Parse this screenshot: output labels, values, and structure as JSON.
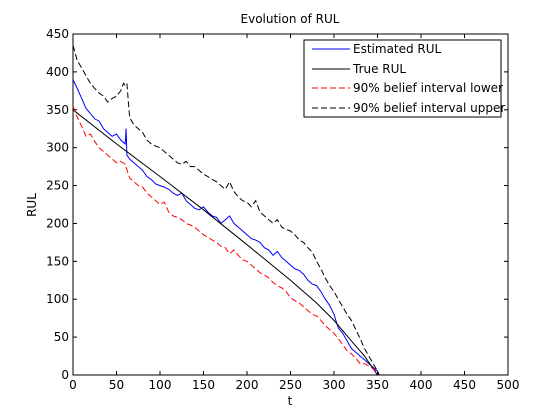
{
  "colors": {
    "estimated": "#0000ff",
    "true": "#000000",
    "lower": "#ff0000",
    "upper": "#000000"
  },
  "chart_data": {
    "type": "line",
    "title": "Evolution of RUL",
    "xlabel": "t",
    "ylabel": "RUL",
    "xlim": [
      0,
      500
    ],
    "ylim": [
      0,
      450
    ],
    "xticks": [
      0,
      50,
      100,
      150,
      200,
      250,
      300,
      350,
      400,
      450,
      500
    ],
    "yticks": [
      0,
      50,
      100,
      150,
      200,
      250,
      300,
      350,
      400,
      450
    ],
    "grid": false,
    "legend_position": "top-right",
    "series": [
      {
        "name": "Estimated RUL",
        "style": "solid",
        "color": "#0000ff",
        "points": [
          [
            0,
            390
          ],
          [
            5,
            378
          ],
          [
            10,
            365
          ],
          [
            15,
            352
          ],
          [
            20,
            345
          ],
          [
            25,
            338
          ],
          [
            30,
            335
          ],
          [
            35,
            325
          ],
          [
            40,
            320
          ],
          [
            45,
            315
          ],
          [
            50,
            318
          ],
          [
            55,
            310
          ],
          [
            60,
            305
          ],
          [
            61,
            325
          ],
          [
            62,
            290
          ],
          [
            65,
            285
          ],
          [
            70,
            280
          ],
          [
            75,
            275
          ],
          [
            80,
            270
          ],
          [
            85,
            262
          ],
          [
            90,
            258
          ],
          [
            95,
            252
          ],
          [
            100,
            250
          ],
          [
            105,
            248
          ],
          [
            110,
            245
          ],
          [
            115,
            240
          ],
          [
            120,
            237
          ],
          [
            125,
            240
          ],
          [
            130,
            230
          ],
          [
            135,
            225
          ],
          [
            140,
            220
          ],
          [
            145,
            218
          ],
          [
            150,
            222
          ],
          [
            155,
            215
          ],
          [
            160,
            210
          ],
          [
            165,
            208
          ],
          [
            170,
            200
          ],
          [
            175,
            205
          ],
          [
            180,
            210
          ],
          [
            185,
            200
          ],
          [
            190,
            195
          ],
          [
            195,
            190
          ],
          [
            200,
            185
          ],
          [
            205,
            180
          ],
          [
            210,
            178
          ],
          [
            215,
            175
          ],
          [
            220,
            168
          ],
          [
            225,
            165
          ],
          [
            230,
            158
          ],
          [
            235,
            163
          ],
          [
            240,
            155
          ],
          [
            245,
            150
          ],
          [
            250,
            145
          ],
          [
            255,
            140
          ],
          [
            260,
            138
          ],
          [
            265,
            133
          ],
          [
            270,
            125
          ],
          [
            275,
            120
          ],
          [
            280,
            118
          ],
          [
            285,
            110
          ],
          [
            290,
            100
          ],
          [
            295,
            92
          ],
          [
            300,
            80
          ],
          [
            305,
            62
          ],
          [
            310,
            55
          ],
          [
            315,
            45
          ],
          [
            320,
            35
          ],
          [
            325,
            30
          ],
          [
            330,
            25
          ],
          [
            335,
            20
          ],
          [
            340,
            15
          ],
          [
            345,
            10
          ],
          [
            350,
            5
          ],
          [
            352,
            0
          ]
        ]
      },
      {
        "name": "True RUL",
        "style": "solid",
        "color": "#000000",
        "points": [
          [
            0,
            350
          ],
          [
            50,
            305
          ],
          [
            100,
            262
          ],
          [
            150,
            218
          ],
          [
            200,
            172
          ],
          [
            250,
            125
          ],
          [
            280,
            95
          ],
          [
            300,
            72
          ],
          [
            320,
            45
          ],
          [
            335,
            25
          ],
          [
            350,
            0
          ]
        ]
      },
      {
        "name": "90% belief interval lower",
        "style": "dashed",
        "color": "#ff0000",
        "points": [
          [
            0,
            355
          ],
          [
            5,
            340
          ],
          [
            10,
            328
          ],
          [
            15,
            315
          ],
          [
            20,
            318
          ],
          [
            25,
            308
          ],
          [
            30,
            300
          ],
          [
            35,
            295
          ],
          [
            40,
            290
          ],
          [
            45,
            285
          ],
          [
            50,
            280
          ],
          [
            55,
            282
          ],
          [
            60,
            278
          ],
          [
            65,
            260
          ],
          [
            70,
            255
          ],
          [
            75,
            250
          ],
          [
            80,
            248
          ],
          [
            85,
            240
          ],
          [
            90,
            235
          ],
          [
            95,
            230
          ],
          [
            100,
            225
          ],
          [
            105,
            228
          ],
          [
            110,
            215
          ],
          [
            115,
            210
          ],
          [
            120,
            208
          ],
          [
            125,
            205
          ],
          [
            130,
            200
          ],
          [
            135,
            198
          ],
          [
            140,
            195
          ],
          [
            145,
            190
          ],
          [
            150,
            185
          ],
          [
            155,
            182
          ],
          [
            160,
            178
          ],
          [
            165,
            175
          ],
          [
            170,
            170
          ],
          [
            175,
            168
          ],
          [
            180,
            160
          ],
          [
            185,
            165
          ],
          [
            190,
            158
          ],
          [
            195,
            152
          ],
          [
            200,
            150
          ],
          [
            205,
            145
          ],
          [
            210,
            140
          ],
          [
            215,
            135
          ],
          [
            220,
            132
          ],
          [
            225,
            128
          ],
          [
            230,
            122
          ],
          [
            235,
            118
          ],
          [
            240,
            115
          ],
          [
            245,
            110
          ],
          [
            250,
            102
          ],
          [
            255,
            98
          ],
          [
            260,
            95
          ],
          [
            265,
            90
          ],
          [
            270,
            85
          ],
          [
            275,
            80
          ],
          [
            280,
            78
          ],
          [
            285,
            72
          ],
          [
            290,
            65
          ],
          [
            295,
            60
          ],
          [
            300,
            55
          ],
          [
            305,
            48
          ],
          [
            310,
            40
          ],
          [
            315,
            32
          ],
          [
            320,
            28
          ],
          [
            325,
            22
          ],
          [
            330,
            15
          ],
          [
            335,
            15
          ],
          [
            340,
            12
          ],
          [
            345,
            8
          ],
          [
            350,
            3
          ],
          [
            352,
            0
          ]
        ]
      },
      {
        "name": "90% belief interval upper",
        "style": "dashed",
        "color": "#000000",
        "points": [
          [
            0,
            435
          ],
          [
            5,
            415
          ],
          [
            10,
            405
          ],
          [
            15,
            395
          ],
          [
            20,
            385
          ],
          [
            25,
            378
          ],
          [
            30,
            372
          ],
          [
            35,
            368
          ],
          [
            40,
            360
          ],
          [
            45,
            365
          ],
          [
            50,
            368
          ],
          [
            55,
            375
          ],
          [
            58,
            385
          ],
          [
            60,
            382
          ],
          [
            62,
            385
          ],
          [
            65,
            340
          ],
          [
            70,
            330
          ],
          [
            75,
            325
          ],
          [
            80,
            320
          ],
          [
            85,
            310
          ],
          [
            90,
            305
          ],
          [
            95,
            302
          ],
          [
            100,
            300
          ],
          [
            105,
            295
          ],
          [
            110,
            290
          ],
          [
            115,
            285
          ],
          [
            120,
            280
          ],
          [
            125,
            278
          ],
          [
            130,
            282
          ],
          [
            135,
            275
          ],
          [
            140,
            275
          ],
          [
            145,
            270
          ],
          [
            150,
            265
          ],
          [
            155,
            262
          ],
          [
            160,
            258
          ],
          [
            165,
            255
          ],
          [
            170,
            250
          ],
          [
            175,
            245
          ],
          [
            180,
            255
          ],
          [
            185,
            242
          ],
          [
            190,
            235
          ],
          [
            195,
            230
          ],
          [
            200,
            228
          ],
          [
            205,
            222
          ],
          [
            210,
            230
          ],
          [
            215,
            215
          ],
          [
            220,
            210
          ],
          [
            225,
            205
          ],
          [
            230,
            200
          ],
          [
            235,
            205
          ],
          [
            240,
            195
          ],
          [
            245,
            192
          ],
          [
            250,
            190
          ],
          [
            255,
            185
          ],
          [
            260,
            178
          ],
          [
            265,
            175
          ],
          [
            270,
            168
          ],
          [
            275,
            162
          ],
          [
            280,
            150
          ],
          [
            285,
            140
          ],
          [
            290,
            128
          ],
          [
            295,
            118
          ],
          [
            300,
            110
          ],
          [
            305,
            100
          ],
          [
            310,
            90
          ],
          [
            315,
            80
          ],
          [
            320,
            72
          ],
          [
            325,
            60
          ],
          [
            330,
            48
          ],
          [
            335,
            35
          ],
          [
            340,
            25
          ],
          [
            345,
            15
          ],
          [
            350,
            5
          ],
          [
            352,
            0
          ]
        ]
      }
    ]
  }
}
